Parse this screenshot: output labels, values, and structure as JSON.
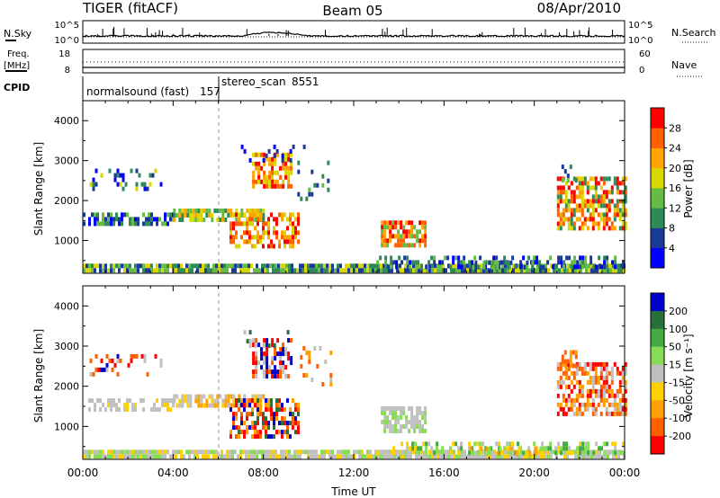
{
  "header": {
    "title": "TIGER (fitACF)",
    "beam": "Beam 05",
    "date": "08/Apr/2010"
  },
  "status_panel": {
    "nsky_label": "N.Sky",
    "nsearch_label": "N.Search",
    "left_ticks": [
      "10^5",
      "10^0"
    ],
    "right_ticks": [
      "10^5",
      "10^0"
    ],
    "freq_label_1": "Freq.",
    "freq_label_2": "[MHz]",
    "freq_ticks": [
      "18",
      "8"
    ],
    "nave_ticks": [
      "60",
      "0"
    ],
    "nave_label": "Nave",
    "cpid_label": "CPID",
    "cpid_segments": [
      {
        "name": "normalsound (fast)",
        "id": "157"
      },
      {
        "name": "stereo_scan",
        "id": "8551"
      }
    ]
  },
  "colors": {
    "power_scale": [
      "#0000ff",
      "#1a3a9a",
      "#2e8b57",
      "#66bb44",
      "#d8d800",
      "#ffa500",
      "#ff6000",
      "#ff0000"
    ],
    "velocity_scale": [
      "#0000cc",
      "#2a6e3a",
      "#44aa44",
      "#88dd55",
      "#c0c0c0",
      "#ffd000",
      "#ffa000",
      "#ff6000",
      "#ff0000"
    ]
  },
  "chart_data": [
    {
      "type": "heatmap",
      "name": "power-panel",
      "ylabel": "Slant Range [km]",
      "ylim": [
        180,
        4500
      ],
      "x_ticks": [
        "00:00",
        "04:00",
        "08:00",
        "12:00",
        "16:00",
        "20:00",
        "00:00"
      ],
      "y_ticks": [
        1000,
        2000,
        3000,
        4000
      ],
      "colorbar": {
        "label": "Power [dB]",
        "ticks": [
          4,
          8,
          12,
          16,
          20,
          24,
          28
        ]
      }
    },
    {
      "type": "heatmap",
      "name": "velocity-panel",
      "xlabel": "Time UT",
      "ylabel": "Slant Range [km]",
      "ylim": [
        180,
        4500
      ],
      "x_ticks": [
        "00:00",
        "04:00",
        "08:00",
        "12:00",
        "16:00",
        "20:00",
        "00:00"
      ],
      "y_ticks": [
        1000,
        2000,
        3000,
        4000
      ],
      "colorbar": {
        "label": "Velocity [m s⁻¹]",
        "ticks": [
          200,
          100,
          50,
          15,
          -15,
          -50,
          -100,
          -200
        ]
      }
    }
  ]
}
